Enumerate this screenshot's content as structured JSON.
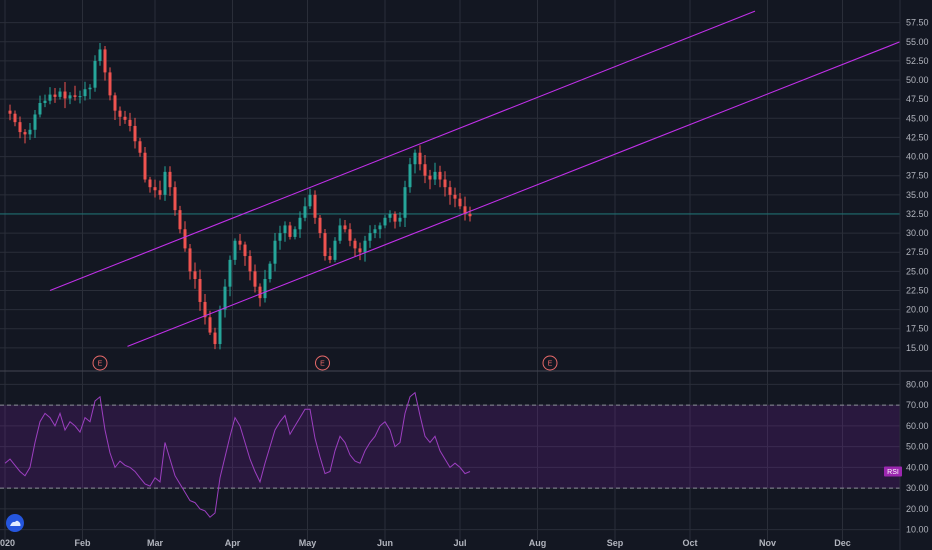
{
  "colors": {
    "background": "#131722",
    "grid": "#2a2e39",
    "axis_text": "#b2b5be",
    "candle_up": "#26a69a",
    "candle_down": "#ef5350",
    "channel": "#c030e8",
    "hline": "#1f6e70",
    "rsi_line": "#9c3fc0",
    "rsi_band": "#7b1fa2",
    "earnings": "#e86a6a"
  },
  "chart_data": {
    "type": "candlestick",
    "price_axis": {
      "ticks": [
        "57.50",
        "55.00",
        "52.50",
        "50.00",
        "47.50",
        "45.00",
        "42.50",
        "40.00",
        "37.50",
        "35.00",
        "32.50",
        "30.00",
        "27.50",
        "25.00",
        "22.50",
        "20.00",
        "17.50",
        "15.00"
      ],
      "ylim": [
        12.5,
        58.5
      ]
    },
    "time_axis": {
      "labels": [
        "2020",
        "Feb",
        "Mar",
        "Apr",
        "May",
        "Jun",
        "Jul",
        "Aug",
        "Sep",
        "Oct",
        "Nov",
        "Dec"
      ],
      "day_offsets": [
        0,
        31,
        60,
        91,
        121,
        152,
        182,
        213,
        244,
        274,
        305,
        335
      ],
      "xlim_days": [
        -2,
        358
      ]
    },
    "close_series": [
      [
        0,
        46
      ],
      [
        2,
        45.6
      ],
      [
        4,
        44.5
      ],
      [
        6,
        43.2
      ],
      [
        8,
        42.9
      ],
      [
        10,
        43.5
      ],
      [
        12,
        45.5
      ],
      [
        14,
        47
      ],
      [
        16,
        47.3
      ],
      [
        18,
        48.1
      ],
      [
        20,
        47.8
      ],
      [
        22,
        48.5
      ],
      [
        24,
        47.6
      ],
      [
        26,
        48
      ],
      [
        28,
        47.8
      ],
      [
        30,
        47.9
      ],
      [
        32,
        48.8
      ],
      [
        34,
        49
      ],
      [
        36,
        52.5
      ],
      [
        38,
        54
      ],
      [
        40,
        51
      ],
      [
        42,
        48
      ],
      [
        44,
        46
      ],
      [
        46,
        45.2
      ],
      [
        48,
        44.8
      ],
      [
        50,
        44
      ],
      [
        52,
        42
      ],
      [
        54,
        40.5
      ],
      [
        56,
        37
      ],
      [
        58,
        36
      ],
      [
        60,
        35.6
      ],
      [
        62,
        35
      ],
      [
        64,
        38
      ],
      [
        66,
        36
      ],
      [
        68,
        33
      ],
      [
        70,
        30.5
      ],
      [
        72,
        28
      ],
      [
        74,
        25
      ],
      [
        76,
        24
      ],
      [
        78,
        21
      ],
      [
        80,
        19
      ],
      [
        82,
        17
      ],
      [
        84,
        15.5
      ],
      [
        86,
        20
      ],
      [
        88,
        23
      ],
      [
        90,
        26.5
      ],
      [
        92,
        29
      ],
      [
        94,
        28.5
      ],
      [
        96,
        27
      ],
      [
        98,
        25
      ],
      [
        100,
        23
      ],
      [
        102,
        21.5
      ],
      [
        104,
        24
      ],
      [
        106,
        26
      ],
      [
        108,
        29
      ],
      [
        110,
        30
      ],
      [
        112,
        31
      ],
      [
        114,
        29.5
      ],
      [
        116,
        30.5
      ],
      [
        118,
        32
      ],
      [
        120,
        33.5
      ],
      [
        122,
        35
      ],
      [
        124,
        32
      ],
      [
        126,
        30
      ],
      [
        128,
        27
      ],
      [
        130,
        26.5
      ],
      [
        132,
        29
      ],
      [
        134,
        31
      ],
      [
        136,
        30.5
      ],
      [
        138,
        29
      ],
      [
        140,
        28
      ],
      [
        142,
        27.5
      ],
      [
        144,
        29
      ],
      [
        146,
        30
      ],
      [
        148,
        30.5
      ],
      [
        150,
        31
      ],
      [
        152,
        32
      ],
      [
        154,
        32.5
      ],
      [
        156,
        31.5
      ],
      [
        158,
        32
      ],
      [
        160,
        36
      ],
      [
        162,
        39
      ],
      [
        164,
        40.5
      ],
      [
        166,
        39
      ],
      [
        168,
        37.5
      ],
      [
        170,
        37
      ],
      [
        172,
        38
      ],
      [
        174,
        37
      ],
      [
        176,
        36
      ],
      [
        178,
        35
      ],
      [
        180,
        34.5
      ],
      [
        182,
        33.5
      ],
      [
        184,
        32.5
      ],
      [
        186,
        32.2
      ]
    ],
    "horizontal_level": 32.5,
    "channel_lines": [
      {
        "name": "upper-channel",
        "p1": {
          "day": 18,
          "price": 22.5
        },
        "p2": {
          "day": 300,
          "price": 59.0
        }
      },
      {
        "name": "lower-channel",
        "p1": {
          "day": 49,
          "price": 15.2
        },
        "p2": {
          "day": 358,
          "price": 55.0
        }
      }
    ],
    "earnings_markers": [
      {
        "label": "E",
        "day": 38
      },
      {
        "label": "E",
        "day": 127
      },
      {
        "label": "E",
        "day": 218
      }
    ],
    "rsi": {
      "label": "RSI",
      "current": 38,
      "axis_ticks": [
        "80.00",
        "70.00",
        "60.00",
        "50.00",
        "40.00",
        "30.00",
        "20.00",
        "10.00"
      ],
      "ylim": [
        5,
        85
      ],
      "upper_band": 70,
      "lower_band": 30,
      "series": [
        [
          0,
          42
        ],
        [
          2,
          44
        ],
        [
          4,
          41
        ],
        [
          6,
          38
        ],
        [
          8,
          36
        ],
        [
          10,
          40
        ],
        [
          12,
          52
        ],
        [
          14,
          62
        ],
        [
          16,
          66
        ],
        [
          18,
          64
        ],
        [
          20,
          60
        ],
        [
          22,
          66
        ],
        [
          24,
          58
        ],
        [
          26,
          62
        ],
        [
          28,
          60
        ],
        [
          30,
          57
        ],
        [
          32,
          64
        ],
        [
          34,
          62
        ],
        [
          36,
          72
        ],
        [
          38,
          74
        ],
        [
          40,
          58
        ],
        [
          42,
          47
        ],
        [
          44,
          40
        ],
        [
          46,
          43
        ],
        [
          48,
          41
        ],
        [
          50,
          40
        ],
        [
          52,
          38
        ],
        [
          54,
          35
        ],
        [
          56,
          32
        ],
        [
          58,
          31
        ],
        [
          60,
          35
        ],
        [
          62,
          33
        ],
        [
          64,
          52
        ],
        [
          66,
          44
        ],
        [
          68,
          36
        ],
        [
          70,
          32
        ],
        [
          72,
          28
        ],
        [
          74,
          24
        ],
        [
          76,
          23
        ],
        [
          78,
          20
        ],
        [
          80,
          19
        ],
        [
          82,
          16
        ],
        [
          84,
          18
        ],
        [
          86,
          35
        ],
        [
          88,
          45
        ],
        [
          90,
          55
        ],
        [
          92,
          64
        ],
        [
          94,
          60
        ],
        [
          96,
          52
        ],
        [
          98,
          44
        ],
        [
          100,
          38
        ],
        [
          102,
          33
        ],
        [
          104,
          42
        ],
        [
          106,
          50
        ],
        [
          108,
          58
        ],
        [
          110,
          62
        ],
        [
          112,
          65
        ],
        [
          114,
          56
        ],
        [
          116,
          60
        ],
        [
          118,
          64
        ],
        [
          120,
          68
        ],
        [
          122,
          68
        ],
        [
          124,
          54
        ],
        [
          126,
          45
        ],
        [
          128,
          37
        ],
        [
          130,
          38
        ],
        [
          132,
          48
        ],
        [
          134,
          55
        ],
        [
          136,
          52
        ],
        [
          138,
          46
        ],
        [
          140,
          43
        ],
        [
          142,
          42
        ],
        [
          144,
          48
        ],
        [
          146,
          52
        ],
        [
          148,
          55
        ],
        [
          150,
          60
        ],
        [
          152,
          62
        ],
        [
          154,
          58
        ],
        [
          156,
          50
        ],
        [
          158,
          52
        ],
        [
          160,
          66
        ],
        [
          162,
          74
        ],
        [
          164,
          76
        ],
        [
          166,
          65
        ],
        [
          168,
          55
        ],
        [
          170,
          52
        ],
        [
          172,
          55
        ],
        [
          174,
          48
        ],
        [
          176,
          44
        ],
        [
          178,
          40
        ],
        [
          180,
          42
        ],
        [
          182,
          40
        ],
        [
          184,
          37
        ],
        [
          186,
          38
        ]
      ]
    }
  }
}
